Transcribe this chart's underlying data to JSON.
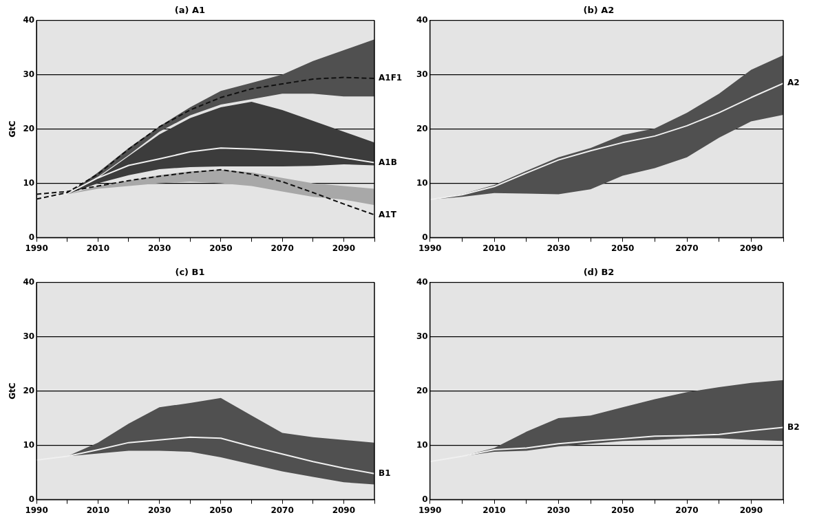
{
  "chart_data": [
    {
      "type": "line",
      "title": "(a) A1",
      "ylabel": "GtC",
      "x": [
        1990,
        2000,
        2010,
        2020,
        2030,
        2040,
        2050,
        2060,
        2070,
        2080,
        2090,
        2100
      ],
      "xlim": [
        1990,
        2100
      ],
      "ylim": [
        0,
        40
      ],
      "xticks": [
        1990,
        {
          "value": 2000,
          "label": null
        },
        2010,
        {
          "value": 2020,
          "label": null
        },
        2030,
        {
          "value": 2040,
          "label": null
        },
        2050,
        {
          "value": 2060,
          "label": null
        },
        2070,
        {
          "value": 2080,
          "label": null
        },
        2090,
        {
          "value": 2100,
          "label": null
        }
      ],
      "yticks": [
        0,
        10,
        20,
        30,
        40
      ],
      "grid": "y",
      "legend": false,
      "marker": "none",
      "series": [
        {
          "name": "A1F1",
          "color": "#111111",
          "line_style": "dashed",
          "values": [
            7.1,
            8.3,
            11.7,
            16.3,
            20.4,
            23.5,
            25.8,
            27.4,
            28.3,
            29.2,
            29.5,
            29.3
          ],
          "lower": [
            7.1,
            8,
            11.2,
            15.2,
            19.5,
            22.5,
            24.5,
            25.5,
            26.5,
            26.5,
            26,
            26
          ],
          "upper": [
            7.1,
            8,
            12,
            16.5,
            20.5,
            24,
            27,
            28.5,
            30,
            32.5,
            34.5,
            36.5
          ]
        },
        {
          "name": "A1B",
          "color": "#f0f0f0",
          "line_style": "solid",
          "values": [
            7.1,
            8.1,
            11,
            13.3,
            14.5,
            15.8,
            16.5,
            16.3,
            16,
            15.6,
            14.7,
            13.8
          ],
          "lower": [
            7.1,
            8,
            10,
            11.5,
            12.6,
            13,
            13.1,
            13.1,
            13.1,
            13.2,
            13.5,
            13.3
          ],
          "upper": [
            7.1,
            8,
            11,
            15,
            19,
            22,
            24,
            25,
            23.5,
            21.5,
            19.5,
            17.5
          ]
        },
        {
          "name": "A1T",
          "color": "#111111",
          "line_style": "dashed",
          "values": [
            8,
            8.5,
            9.5,
            10.5,
            11.3,
            12,
            12.5,
            11.7,
            10.3,
            8.3,
            6.2,
            4.2
          ],
          "lower": [
            7.1,
            8,
            9,
            9.5,
            10,
            10.3,
            10,
            9.5,
            8.5,
            7.5,
            7,
            6
          ],
          "upper": [
            7.1,
            8,
            9.5,
            10.5,
            11.5,
            12.2,
            12.5,
            12,
            11,
            10,
            9.5,
            9
          ]
        }
      ]
    },
    {
      "type": "line",
      "title": "(b) A2",
      "x": [
        1990,
        2000,
        2010,
        2020,
        2030,
        2040,
        2050,
        2060,
        2070,
        2080,
        2090,
        2100
      ],
      "xlim": [
        1990,
        2100
      ],
      "ylim": [
        0,
        40
      ],
      "xticks": [
        1990,
        {
          "value": 2000,
          "label": null
        },
        2010,
        {
          "value": 2020,
          "label": null
        },
        2030,
        {
          "value": 2040,
          "label": null
        },
        2050,
        {
          "value": 2060,
          "label": null
        },
        2070,
        {
          "value": 2080,
          "label": null
        },
        2090,
        {
          "value": 2100,
          "label": null
        }
      ],
      "yticks": [
        0,
        10,
        20,
        30,
        40
      ],
      "grid": "y",
      "legend": false,
      "marker": "none",
      "series": [
        {
          "name": "A2",
          "color": "#f0f0f0",
          "line_style": "solid",
          "values": [
            7,
            7.9,
            9.4,
            11.9,
            14.3,
            16,
            17.5,
            18.7,
            20.6,
            23,
            25.8,
            28.4
          ],
          "lower": [
            7,
            7.5,
            8.2,
            8.1,
            8,
            8.9,
            11.4,
            12.8,
            14.8,
            18.4,
            21.4,
            22.6
          ],
          "upper": [
            7,
            8,
            9.7,
            12.3,
            14.8,
            16.5,
            18.9,
            20.1,
            23,
            26.5,
            30.9,
            33.6
          ]
        }
      ]
    },
    {
      "type": "line",
      "title": "(c) B1",
      "ylabel": "GtC",
      "x": [
        1990,
        2000,
        2010,
        2020,
        2030,
        2040,
        2050,
        2060,
        2070,
        2080,
        2090,
        2100
      ],
      "xlim": [
        1990,
        2100
      ],
      "ylim": [
        0,
        40
      ],
      "xticks": [
        1990,
        {
          "value": 2000,
          "label": null
        },
        2010,
        {
          "value": 2020,
          "label": null
        },
        2030,
        {
          "value": 2040,
          "label": null
        },
        2050,
        {
          "value": 2060,
          "label": null
        },
        2070,
        {
          "value": 2080,
          "label": null
        },
        2090,
        {
          "value": 2100,
          "label": null
        }
      ],
      "yticks": [
        0,
        10,
        20,
        30,
        40
      ],
      "grid": "y",
      "legend": false,
      "marker": "none",
      "series": [
        {
          "name": "B1",
          "color": "#f0f0f0",
          "line_style": "solid",
          "values": [
            7.3,
            8,
            9.2,
            10.5,
            11,
            11.5,
            11.3,
            9.8,
            8.4,
            7,
            5.8,
            4.8
          ],
          "lower": [
            7.3,
            8,
            8.5,
            9,
            9,
            8.8,
            7.8,
            6.5,
            5.2,
            4.2,
            3.2,
            2.8
          ],
          "upper": [
            7.3,
            8,
            10.5,
            14,
            17,
            17.8,
            18.7,
            15.5,
            12.3,
            11.5,
            11,
            10.5
          ]
        }
      ]
    },
    {
      "type": "line",
      "title": "(d) B2",
      "x": [
        1990,
        2000,
        2010,
        2020,
        2030,
        2040,
        2050,
        2060,
        2070,
        2080,
        2090,
        2100
      ],
      "xlim": [
        1990,
        2100
      ],
      "ylim": [
        0,
        40
      ],
      "xticks": [
        1990,
        {
          "value": 2000,
          "label": null
        },
        2010,
        {
          "value": 2020,
          "label": null
        },
        2030,
        {
          "value": 2040,
          "label": null
        },
        2050,
        {
          "value": 2060,
          "label": null
        },
        2070,
        {
          "value": 2080,
          "label": null
        },
        2090,
        {
          "value": 2100,
          "label": null
        }
      ],
      "yticks": [
        0,
        10,
        20,
        30,
        40
      ],
      "grid": "y",
      "legend": false,
      "marker": "none",
      "series": [
        {
          "name": "B2",
          "color": "#f0f0f0",
          "line_style": "solid",
          "values": [
            7,
            8,
            9.2,
            9.5,
            10.3,
            10.8,
            11.2,
            11.7,
            11.8,
            12,
            12.7,
            13.3
          ],
          "lower": [
            7,
            8,
            8.8,
            9,
            9.8,
            10.3,
            10.8,
            11,
            11.3,
            11.3,
            11,
            10.8
          ],
          "upper": [
            7,
            8,
            9.5,
            12.5,
            15,
            15.5,
            17,
            18.5,
            19.8,
            20.7,
            21.5,
            22
          ]
        }
      ]
    }
  ]
}
